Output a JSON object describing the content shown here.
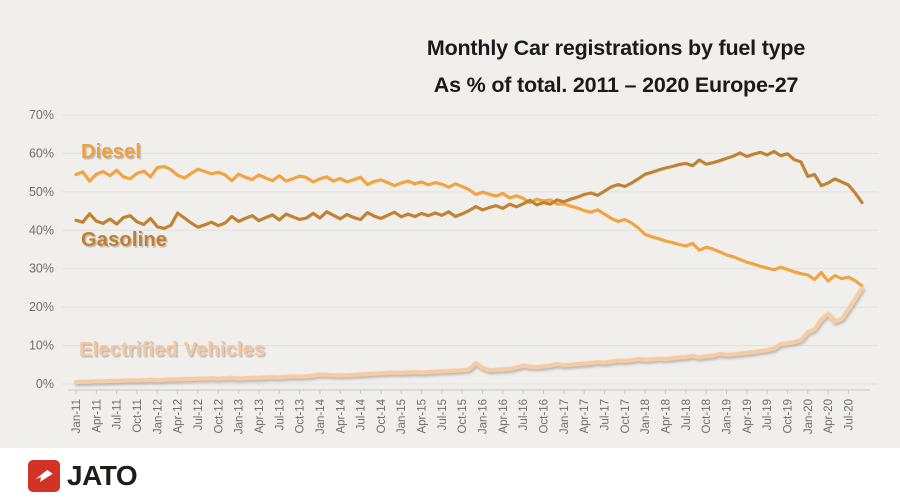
{
  "title": {
    "line1": "Monthly Car registrations by fuel type",
    "line2": "As % of total. 2011 – 2020 Europe-27"
  },
  "branding": {
    "logo_text": "JATO",
    "logo_color": "#d13327"
  },
  "colors": {
    "background": "#f0efec",
    "grid": "#e3e1dd",
    "axis_line": "#c9c7c3",
    "axis_text": "#6f6e6c",
    "title_text": "#1a1a1a",
    "diesel": "#f2a444",
    "gasoline": "#c28234",
    "electrified": "#f6cca5"
  },
  "chart_data": {
    "type": "line",
    "title": "Monthly Car registrations by fuel type",
    "subtitle": "As % of total. 2011 – 2020 Europe-27",
    "xlabel": "",
    "ylabel": "",
    "ylim": [
      0,
      70
    ],
    "y_ticks": [
      "0%",
      "10%",
      "20%",
      "30%",
      "40%",
      "50%",
      "60%",
      "70%"
    ],
    "x_tick_every": 3,
    "grid": "horizontal",
    "legend_position": "inline-labels",
    "x": [
      "Jan-11",
      "Feb-11",
      "Mar-11",
      "Apr-11",
      "May-11",
      "Jun-11",
      "Jul-11",
      "Aug-11",
      "Sep-11",
      "Oct-11",
      "Nov-11",
      "Dec-11",
      "Jan-12",
      "Feb-12",
      "Mar-12",
      "Apr-12",
      "May-12",
      "Jun-12",
      "Jul-12",
      "Aug-12",
      "Sep-12",
      "Oct-12",
      "Nov-12",
      "Dec-12",
      "Jan-13",
      "Feb-13",
      "Mar-13",
      "Apr-13",
      "May-13",
      "Jun-13",
      "Jul-13",
      "Aug-13",
      "Sep-13",
      "Oct-13",
      "Nov-13",
      "Dec-13",
      "Jan-14",
      "Feb-14",
      "Mar-14",
      "Apr-14",
      "May-14",
      "Jun-14",
      "Jul-14",
      "Aug-14",
      "Sep-14",
      "Oct-14",
      "Nov-14",
      "Dec-14",
      "Jan-15",
      "Feb-15",
      "Mar-15",
      "Apr-15",
      "May-15",
      "Jun-15",
      "Jul-15",
      "Aug-15",
      "Sep-15",
      "Oct-15",
      "Nov-15",
      "Dec-15",
      "Jan-16",
      "Feb-16",
      "Mar-16",
      "Apr-16",
      "May-16",
      "Jun-16",
      "Jul-16",
      "Aug-16",
      "Sep-16",
      "Oct-16",
      "Nov-16",
      "Dec-16",
      "Jan-17",
      "Feb-17",
      "Mar-17",
      "Apr-17",
      "May-17",
      "Jun-17",
      "Jul-17",
      "Aug-17",
      "Sep-17",
      "Oct-17",
      "Nov-17",
      "Dec-17",
      "Jan-18",
      "Feb-18",
      "Mar-18",
      "Apr-18",
      "May-18",
      "Jun-18",
      "Jul-18",
      "Aug-18",
      "Sep-18",
      "Oct-18",
      "Nov-18",
      "Dec-18",
      "Jan-19",
      "Feb-19",
      "Mar-19",
      "Apr-19",
      "May-19",
      "Jun-19",
      "Jul-19",
      "Aug-19",
      "Sep-19",
      "Oct-19",
      "Nov-19",
      "Dec-19",
      "Jan-20",
      "Feb-20",
      "Mar-20",
      "Apr-20",
      "May-20",
      "Jun-20",
      "Jul-20",
      "Aug-20",
      "Sep-20"
    ],
    "series": [
      {
        "id": "diesel",
        "name": "Diesel",
        "color": "#f2a444",
        "values": [
          54.5,
          55.2,
          52.8,
          54.6,
          55.3,
          54.2,
          55.6,
          53.9,
          53.4,
          54.8,
          55.4,
          53.9,
          56.3,
          56.6,
          55.8,
          54.3,
          53.6,
          54.8,
          55.9,
          55.3,
          54.7,
          55.1,
          54.4,
          52.9,
          54.6,
          53.8,
          53.2,
          54.4,
          53.6,
          52.9,
          54.2,
          52.8,
          53.4,
          54.1,
          53.7,
          52.6,
          53.4,
          53.9,
          52.8,
          53.5,
          52.6,
          53.2,
          53.8,
          51.9,
          52.7,
          53.1,
          52.4,
          51.6,
          52.3,
          52.8,
          52.1,
          52.6,
          51.8,
          52.4,
          52.0,
          51.2,
          52.1,
          51.4,
          50.6,
          49.3,
          49.9,
          49.4,
          48.9,
          49.6,
          48.4,
          49.0,
          48.3,
          47.2,
          48.1,
          47.6,
          47.9,
          46.8,
          46.9,
          46.3,
          45.8,
          45.1,
          44.7,
          45.3,
          44.2,
          43.1,
          42.3,
          42.8,
          41.9,
          40.6,
          38.9,
          38.3,
          37.8,
          37.2,
          36.8,
          36.3,
          35.9,
          36.6,
          34.8,
          35.6,
          35.1,
          34.4,
          33.6,
          33.1,
          32.4,
          31.7,
          31.2,
          30.6,
          30.2,
          29.7,
          30.4,
          29.8,
          29.2,
          28.7,
          28.4,
          27.2,
          29.0,
          26.8,
          28.2,
          27.4,
          27.8,
          26.9,
          25.5
        ]
      },
      {
        "id": "gasoline",
        "name": "Gasoline",
        "color": "#c28234",
        "values": [
          42.6,
          42.1,
          44.3,
          42.4,
          41.8,
          42.9,
          41.6,
          43.3,
          43.8,
          42.2,
          41.5,
          43.1,
          40.9,
          40.5,
          41.3,
          44.5,
          43.2,
          41.9,
          40.8,
          41.4,
          42.1,
          41.2,
          41.9,
          43.6,
          42.3,
          43.1,
          43.8,
          42.5,
          43.3,
          44.0,
          42.7,
          44.2,
          43.5,
          42.8,
          43.2,
          44.4,
          43.2,
          44.8,
          43.9,
          43.0,
          44.1,
          43.3,
          42.8,
          44.6,
          43.7,
          43.1,
          43.9,
          44.7,
          43.5,
          44.2,
          43.6,
          44.4,
          43.8,
          44.5,
          43.9,
          44.8,
          43.6,
          44.3,
          45.1,
          46.2,
          45.3,
          45.9,
          46.4,
          45.7,
          46.8,
          46.1,
          46.9,
          47.8,
          46.6,
          47.2,
          46.8,
          47.9,
          47.4,
          48.1,
          48.6,
          49.3,
          49.7,
          49.1,
          50.2,
          51.3,
          51.9,
          51.4,
          52.3,
          53.4,
          54.6,
          55.1,
          55.7,
          56.2,
          56.6,
          57.1,
          57.4,
          56.8,
          58.3,
          57.2,
          57.6,
          58.1,
          58.7,
          59.3,
          60.1,
          59.2,
          59.8,
          60.3,
          59.6,
          60.5,
          59.4,
          59.9,
          58.4,
          57.8,
          54.0,
          54.5,
          51.6,
          52.3,
          53.4,
          52.6,
          51.8,
          49.7,
          47.2
        ]
      },
      {
        "id": "electrified",
        "name": "Electrified Vehicles",
        "color": "#f6cca5",
        "values": [
          0.5,
          0.6,
          0.6,
          0.7,
          0.7,
          0.8,
          0.8,
          0.9,
          1.0,
          0.9,
          1.0,
          1.1,
          1.0,
          1.1,
          1.2,
          1.2,
          1.3,
          1.3,
          1.4,
          1.4,
          1.5,
          1.4,
          1.5,
          1.6,
          1.4,
          1.5,
          1.6,
          1.6,
          1.7,
          1.8,
          1.7,
          1.9,
          2.0,
          1.9,
          2.0,
          2.2,
          2.5,
          2.4,
          2.3,
          2.2,
          2.3,
          2.4,
          2.5,
          2.6,
          2.7,
          2.8,
          2.9,
          3.0,
          2.9,
          3.0,
          3.1,
          3.0,
          3.1,
          3.2,
          3.3,
          3.4,
          3.5,
          3.6,
          3.8,
          5.4,
          4.2,
          3.6,
          3.7,
          3.8,
          3.9,
          4.3,
          4.8,
          4.5,
          4.4,
          4.6,
          4.8,
          5.2,
          4.9,
          5.0,
          5.2,
          5.3,
          5.5,
          5.7,
          5.6,
          5.8,
          6.1,
          6.0,
          6.2,
          6.5,
          6.3,
          6.4,
          6.6,
          6.5,
          6.7,
          6.9,
          7.0,
          7.3,
          6.9,
          7.2,
          7.4,
          7.8,
          7.6,
          7.7,
          7.9,
          8.1,
          8.3,
          8.6,
          8.8,
          9.2,
          10.4,
          10.6,
          10.9,
          11.4,
          13.5,
          14.2,
          16.8,
          18.3,
          16.2,
          16.9,
          19.4,
          22.1,
          24.9
        ]
      }
    ]
  }
}
